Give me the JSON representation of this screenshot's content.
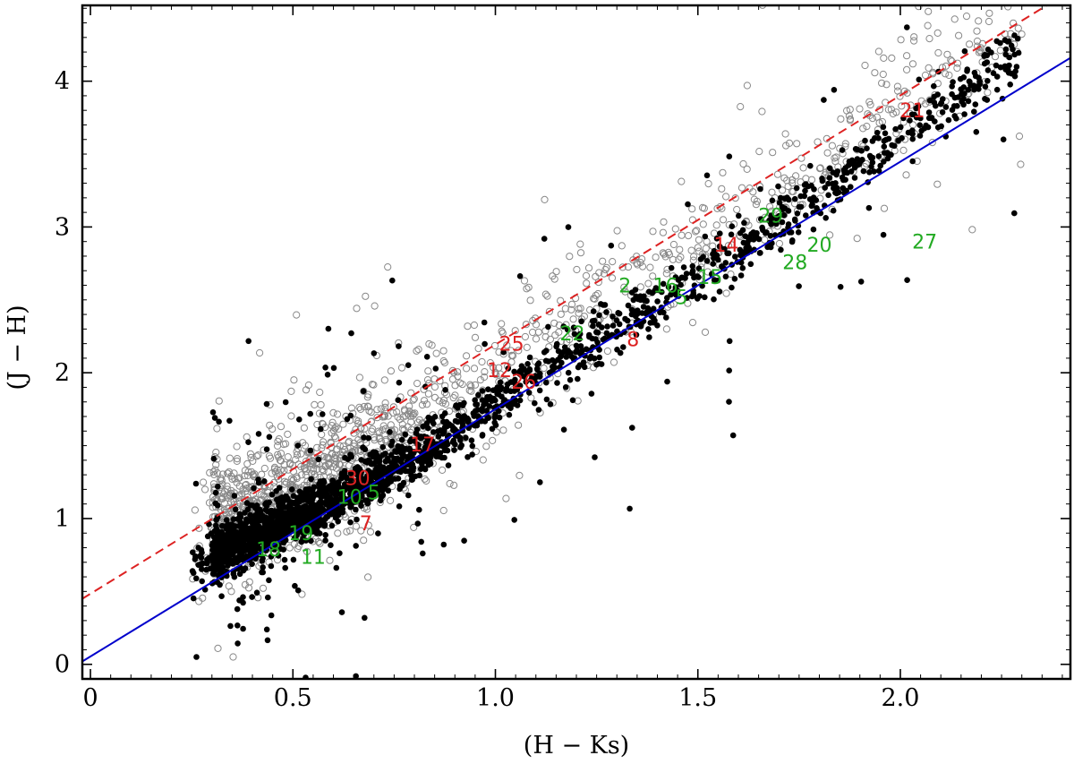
{
  "chart_data": {
    "type": "scatter",
    "xlabel": "(H − Ks)",
    "ylabel": "(J − H)",
    "xlim": [
      -0.02,
      2.42
    ],
    "ylim": [
      -0.1,
      4.52
    ],
    "x_ticks": [
      0,
      0.5,
      1.0,
      1.5,
      2.0
    ],
    "x_tick_labels": [
      "0",
      "0.5",
      "1.0",
      "1.5",
      "2.0"
    ],
    "y_ticks": [
      0,
      1,
      2,
      3,
      4
    ],
    "y_tick_labels": [
      "0",
      "1",
      "2",
      "3",
      "4"
    ],
    "grid": false,
    "legend": "none",
    "lines": [
      {
        "style": "solid",
        "color": "#0000cc",
        "points": [
          [
            -0.02,
            0.02
          ],
          [
            2.42,
            4.16
          ]
        ]
      },
      {
        "style": "dashed",
        "color": "#dd2222",
        "points": [
          [
            -0.02,
            0.45
          ],
          [
            2.42,
            4.62
          ]
        ]
      }
    ],
    "field_distribution": {
      "filled_color": "#000000",
      "open_color": "#888888",
      "ridge": [
        [
          0.25,
          0.72
        ],
        [
          0.4,
          0.9
        ],
        [
          0.6,
          1.15
        ],
        [
          0.8,
          1.45
        ],
        [
          1.0,
          1.82
        ],
        [
          1.2,
          2.18
        ],
        [
          1.4,
          2.5
        ],
        [
          1.6,
          2.85
        ],
        [
          1.8,
          3.25
        ],
        [
          2.0,
          3.65
        ],
        [
          2.2,
          4.05
        ]
      ]
    },
    "labeled_sources": [
      {
        "label": "21",
        "x": 2.03,
        "y": 3.8,
        "color": "#dd2222"
      },
      {
        "label": "29",
        "x": 1.68,
        "y": 3.08,
        "color": "#22aa22"
      },
      {
        "label": "14",
        "x": 1.57,
        "y": 2.88,
        "color": "#dd2222"
      },
      {
        "label": "20",
        "x": 1.8,
        "y": 2.88,
        "color": "#22aa22"
      },
      {
        "label": "27",
        "x": 2.06,
        "y": 2.9,
        "color": "#22aa22"
      },
      {
        "label": "28",
        "x": 1.74,
        "y": 2.76,
        "color": "#22aa22"
      },
      {
        "label": "2",
        "x": 1.32,
        "y": 2.6,
        "color": "#22aa22"
      },
      {
        "label": "16",
        "x": 1.42,
        "y": 2.6,
        "color": "#22aa22"
      },
      {
        "label": "5",
        "x": 1.46,
        "y": 2.52,
        "color": "#22aa22"
      },
      {
        "label": "15",
        "x": 1.53,
        "y": 2.66,
        "color": "#22aa22"
      },
      {
        "label": "22",
        "x": 1.19,
        "y": 2.27,
        "color": "#22aa22"
      },
      {
        "label": "25",
        "x": 1.04,
        "y": 2.2,
        "color": "#dd2222"
      },
      {
        "label": "8",
        "x": 1.34,
        "y": 2.23,
        "color": "#dd2222"
      },
      {
        "label": "12",
        "x": 1.01,
        "y": 2.02,
        "color": "#dd2222"
      },
      {
        "label": "26",
        "x": 1.07,
        "y": 1.94,
        "color": "#dd2222"
      },
      {
        "label": "17",
        "x": 0.82,
        "y": 1.51,
        "color": "#dd2222"
      },
      {
        "label": "30",
        "x": 0.66,
        "y": 1.28,
        "color": "#dd2222"
      },
      {
        "label": "10",
        "x": 0.64,
        "y": 1.15,
        "color": "#22aa22"
      },
      {
        "label": "5",
        "x": 0.7,
        "y": 1.18,
        "color": "#22aa22"
      },
      {
        "label": "7",
        "x": 0.68,
        "y": 0.97,
        "color": "#dd2222"
      },
      {
        "label": "19",
        "x": 0.52,
        "y": 0.9,
        "color": "#22aa22"
      },
      {
        "label": "18",
        "x": 0.44,
        "y": 0.79,
        "color": "#22aa22"
      },
      {
        "label": "11",
        "x": 0.55,
        "y": 0.74,
        "color": "#22aa22"
      }
    ]
  }
}
